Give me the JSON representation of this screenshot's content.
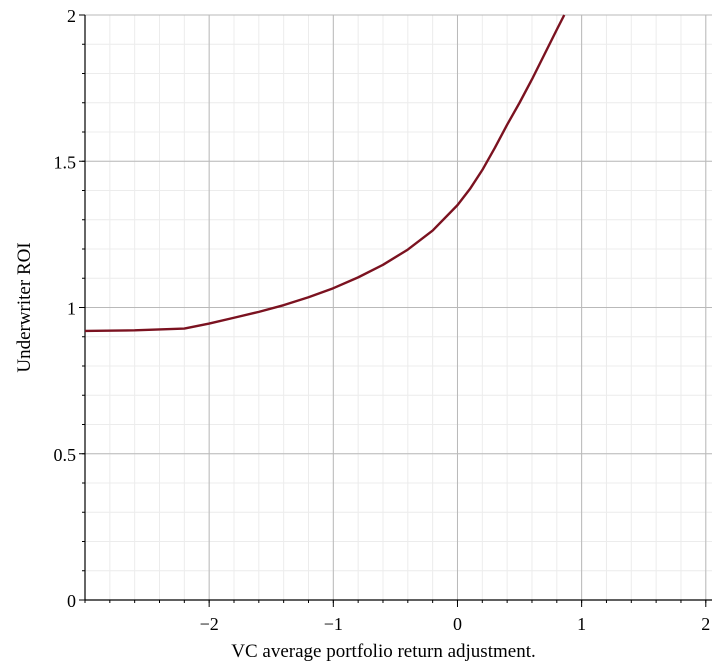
{
  "chart_data": {
    "type": "line",
    "title": "",
    "xlabel": "VC average portfolio return adjustment.",
    "ylabel": "Underwriter ROI",
    "xlim": [
      -3,
      2.05
    ],
    "ylim": [
      0,
      2
    ],
    "x_ticks": [
      -2,
      -1,
      0,
      1,
      2
    ],
    "x_tick_labels": [
      "−2",
      "−1",
      "0",
      "1",
      "2"
    ],
    "y_ticks": [
      0,
      0.5,
      1,
      1.5,
      2
    ],
    "y_tick_labels": [
      "0",
      "0.5",
      "1",
      "1.5",
      "2"
    ],
    "grid": true,
    "series": [
      {
        "color": "#7b1220",
        "x": [
          -3.0,
          -2.6,
          -2.2,
          -2.0,
          -1.8,
          -1.6,
          -1.4,
          -1.2,
          -1.0,
          -0.8,
          -0.6,
          -0.4,
          -0.2,
          0.0,
          0.1,
          0.2,
          0.3,
          0.4,
          0.5,
          0.6,
          0.7,
          0.8,
          0.86
        ],
        "y": [
          0.92,
          0.922,
          0.928,
          0.945,
          0.965,
          0.985,
          1.008,
          1.035,
          1.066,
          1.103,
          1.146,
          1.198,
          1.263,
          1.35,
          1.405,
          1.47,
          1.545,
          1.625,
          1.7,
          1.78,
          1.865,
          1.95,
          2.0
        ]
      }
    ]
  }
}
